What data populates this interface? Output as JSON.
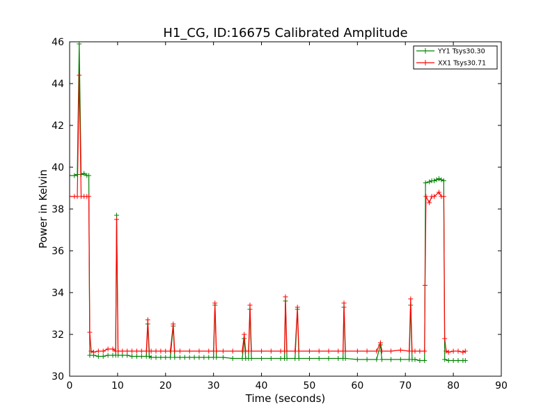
{
  "chart_data": {
    "type": "line",
    "title": "H1_CG, ID:16675 Calibrated Amplitude",
    "xlabel": "Time (seconds)",
    "ylabel": "Power in Kelvin",
    "xlim": [
      0,
      90
    ],
    "ylim": [
      30,
      46
    ],
    "xticks": [
      0,
      10,
      20,
      30,
      40,
      50,
      60,
      70,
      80,
      90
    ],
    "yticks": [
      30,
      32,
      34,
      36,
      38,
      40,
      42,
      44,
      46
    ],
    "grid": false,
    "legend_position": "top-right",
    "series": [
      {
        "name": "YY1 Tsys30.30",
        "color": "#008000",
        "marker": "+",
        "points": [
          [
            0.0,
            39.6
          ],
          [
            1.0,
            39.6
          ],
          [
            1.6,
            39.65
          ],
          [
            2.0,
            45.9
          ],
          [
            2.4,
            39.65
          ],
          [
            3.0,
            39.7
          ],
          [
            3.6,
            39.6
          ],
          [
            4.0,
            39.6
          ],
          [
            4.2,
            31.0
          ],
          [
            5.0,
            31.0
          ],
          [
            6.0,
            30.95
          ],
          [
            7.0,
            30.95
          ],
          [
            8.0,
            31.0
          ],
          [
            9.0,
            31.0
          ],
          [
            9.6,
            31.0
          ],
          [
            9.8,
            37.7
          ],
          [
            10.1,
            31.0
          ],
          [
            11.0,
            31.0
          ],
          [
            12.0,
            31.0
          ],
          [
            13.0,
            30.95
          ],
          [
            14.0,
            30.95
          ],
          [
            15.0,
            30.95
          ],
          [
            16.0,
            30.95
          ],
          [
            16.3,
            32.5
          ],
          [
            16.6,
            30.95
          ],
          [
            17.0,
            30.9
          ],
          [
            18.0,
            30.9
          ],
          [
            19.0,
            30.9
          ],
          [
            20.0,
            30.9
          ],
          [
            21.0,
            30.9
          ],
          [
            21.6,
            32.4
          ],
          [
            21.9,
            30.9
          ],
          [
            23.0,
            30.9
          ],
          [
            24.0,
            30.9
          ],
          [
            25.0,
            30.9
          ],
          [
            26.0,
            30.9
          ],
          [
            27.0,
            30.9
          ],
          [
            28.0,
            30.9
          ],
          [
            29.0,
            30.9
          ],
          [
            30.0,
            30.9
          ],
          [
            30.3,
            33.4
          ],
          [
            30.6,
            30.9
          ],
          [
            32.0,
            30.9
          ],
          [
            34.0,
            30.85
          ],
          [
            36.0,
            30.85
          ],
          [
            36.4,
            31.8
          ],
          [
            36.7,
            30.85
          ],
          [
            37.3,
            30.85
          ],
          [
            37.6,
            33.2
          ],
          [
            37.9,
            30.85
          ],
          [
            40.0,
            30.85
          ],
          [
            42.0,
            30.85
          ],
          [
            44.0,
            30.85
          ],
          [
            44.8,
            30.85
          ],
          [
            45.0,
            33.6
          ],
          [
            45.3,
            30.85
          ],
          [
            47.0,
            30.85
          ],
          [
            47.5,
            33.2
          ],
          [
            47.8,
            30.85
          ],
          [
            50.0,
            30.85
          ],
          [
            52.0,
            30.85
          ],
          [
            54.0,
            30.85
          ],
          [
            56.0,
            30.85
          ],
          [
            57.0,
            30.85
          ],
          [
            57.2,
            33.3
          ],
          [
            57.5,
            30.85
          ],
          [
            60.0,
            30.8
          ],
          [
            62.0,
            30.8
          ],
          [
            64.0,
            30.8
          ],
          [
            64.8,
            31.5
          ],
          [
            65.1,
            30.8
          ],
          [
            67.0,
            30.8
          ],
          [
            69.0,
            30.8
          ],
          [
            70.8,
            30.8
          ],
          [
            71.1,
            33.4
          ],
          [
            71.4,
            30.8
          ],
          [
            72.0,
            30.8
          ],
          [
            73.0,
            30.75
          ],
          [
            74.0,
            30.75
          ],
          [
            74.2,
            39.25
          ],
          [
            75.0,
            39.3
          ],
          [
            75.5,
            39.35
          ],
          [
            76.0,
            39.35
          ],
          [
            76.5,
            39.4
          ],
          [
            77.0,
            39.45
          ],
          [
            77.5,
            39.4
          ],
          [
            78.0,
            39.35
          ],
          [
            78.2,
            30.8
          ],
          [
            79.0,
            30.75
          ],
          [
            80.0,
            30.75
          ],
          [
            81.0,
            30.75
          ],
          [
            82.0,
            30.75
          ],
          [
            82.5,
            30.75
          ]
        ]
      },
      {
        "name": "XX1 Tsys30.71",
        "color": "#ff0000",
        "marker": "+",
        "points": [
          [
            0.0,
            38.6
          ],
          [
            1.0,
            38.6
          ],
          [
            1.6,
            38.6
          ],
          [
            2.0,
            44.4
          ],
          [
            2.4,
            38.6
          ],
          [
            3.0,
            38.6
          ],
          [
            3.6,
            38.6
          ],
          [
            4.0,
            38.6
          ],
          [
            4.2,
            32.1
          ],
          [
            4.5,
            31.2
          ],
          [
            5.0,
            31.15
          ],
          [
            6.0,
            31.2
          ],
          [
            7.0,
            31.2
          ],
          [
            8.0,
            31.3
          ],
          [
            9.0,
            31.3
          ],
          [
            9.6,
            31.2
          ],
          [
            9.8,
            37.5
          ],
          [
            10.1,
            31.2
          ],
          [
            11.0,
            31.2
          ],
          [
            12.0,
            31.2
          ],
          [
            13.0,
            31.2
          ],
          [
            14.0,
            31.2
          ],
          [
            15.0,
            31.2
          ],
          [
            16.0,
            31.2
          ],
          [
            16.3,
            32.7
          ],
          [
            16.6,
            31.2
          ],
          [
            17.0,
            31.2
          ],
          [
            18.0,
            31.2
          ],
          [
            19.0,
            31.2
          ],
          [
            20.0,
            31.2
          ],
          [
            21.0,
            31.2
          ],
          [
            21.6,
            32.5
          ],
          [
            21.9,
            31.2
          ],
          [
            23.0,
            31.2
          ],
          [
            25.0,
            31.2
          ],
          [
            27.0,
            31.2
          ],
          [
            29.0,
            31.2
          ],
          [
            30.0,
            31.2
          ],
          [
            30.3,
            33.5
          ],
          [
            30.6,
            31.2
          ],
          [
            32.0,
            31.2
          ],
          [
            34.0,
            31.2
          ],
          [
            36.0,
            31.2
          ],
          [
            36.4,
            32.0
          ],
          [
            36.7,
            31.2
          ],
          [
            37.3,
            31.2
          ],
          [
            37.6,
            33.4
          ],
          [
            37.9,
            31.2
          ],
          [
            40.0,
            31.2
          ],
          [
            42.0,
            31.2
          ],
          [
            44.0,
            31.2
          ],
          [
            44.8,
            31.2
          ],
          [
            45.0,
            33.8
          ],
          [
            45.3,
            31.2
          ],
          [
            47.0,
            31.2
          ],
          [
            47.5,
            33.3
          ],
          [
            47.8,
            31.2
          ],
          [
            50.0,
            31.2
          ],
          [
            52.0,
            31.2
          ],
          [
            54.0,
            31.2
          ],
          [
            56.0,
            31.2
          ],
          [
            57.0,
            31.2
          ],
          [
            57.2,
            33.5
          ],
          [
            57.5,
            31.2
          ],
          [
            60.0,
            31.2
          ],
          [
            62.0,
            31.2
          ],
          [
            64.0,
            31.2
          ],
          [
            64.8,
            31.6
          ],
          [
            65.1,
            31.2
          ],
          [
            67.0,
            31.2
          ],
          [
            69.0,
            31.25
          ],
          [
            70.8,
            31.2
          ],
          [
            71.1,
            33.7
          ],
          [
            71.4,
            31.2
          ],
          [
            72.0,
            31.2
          ],
          [
            73.0,
            31.2
          ],
          [
            74.0,
            31.2
          ],
          [
            74.1,
            34.35
          ],
          [
            74.3,
            38.6
          ],
          [
            75.0,
            38.3
          ],
          [
            75.5,
            38.6
          ],
          [
            76.0,
            38.6
          ],
          [
            77.0,
            38.8
          ],
          [
            77.5,
            38.6
          ],
          [
            78.0,
            38.6
          ],
          [
            78.2,
            31.8
          ],
          [
            78.5,
            31.2
          ],
          [
            79.0,
            31.15
          ],
          [
            80.0,
            31.2
          ],
          [
            81.0,
            31.2
          ],
          [
            82.0,
            31.15
          ],
          [
            82.5,
            31.2
          ]
        ]
      }
    ]
  }
}
